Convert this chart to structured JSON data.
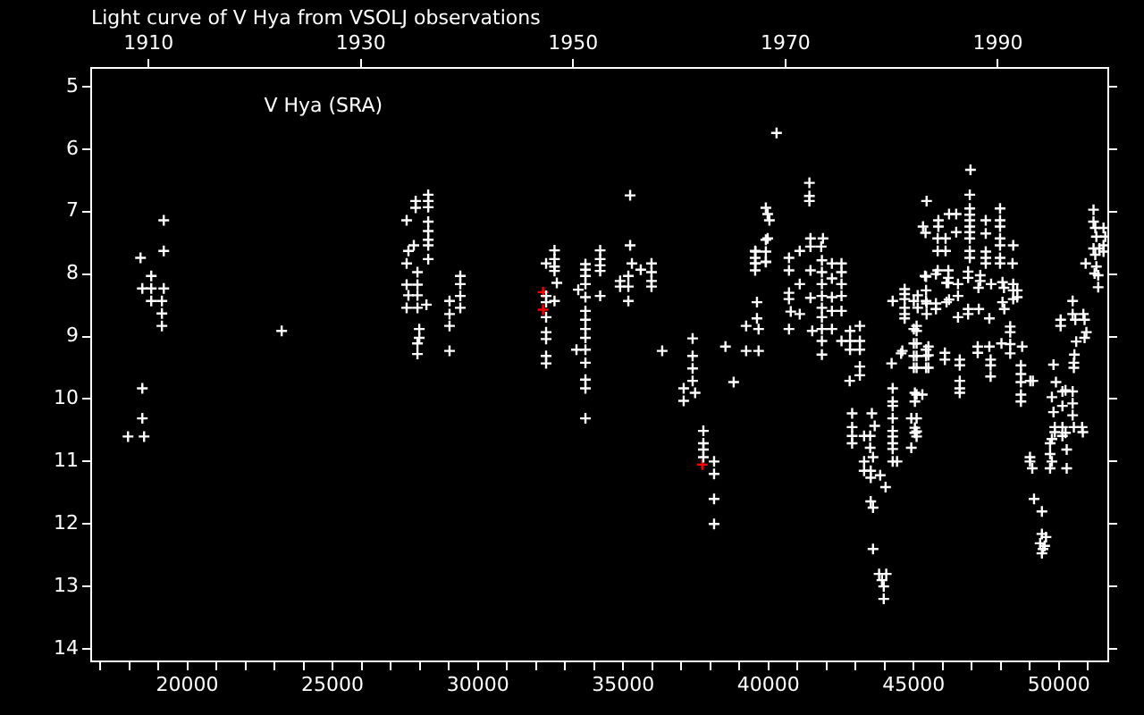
{
  "chart_data": {
    "type": "scatter",
    "title": "Light curve of V Hya from VSOLJ observations",
    "annotations": [
      "V Hya (SRA)"
    ],
    "marker": "cross",
    "xlim": [
      16690,
      51700
    ],
    "xticks": [
      {
        "value": 17000,
        "label": null
      },
      {
        "value": 18000,
        "label": null
      },
      {
        "value": 19000,
        "label": null
      },
      20000,
      {
        "value": 21000,
        "label": null
      },
      {
        "value": 22000,
        "label": null
      },
      {
        "value": 23000,
        "label": null
      },
      {
        "value": 24000,
        "label": null
      },
      25000,
      {
        "value": 26000,
        "label": null
      },
      {
        "value": 27000,
        "label": null
      },
      {
        "value": 28000,
        "label": null
      },
      {
        "value": 29000,
        "label": null
      },
      30000,
      {
        "value": 31000,
        "label": null
      },
      {
        "value": 32000,
        "label": null
      },
      {
        "value": 33000,
        "label": null
      },
      {
        "value": 34000,
        "label": null
      },
      35000,
      {
        "value": 36000,
        "label": null
      },
      {
        "value": 37000,
        "label": null
      },
      {
        "value": 38000,
        "label": null
      },
      {
        "value": 39000,
        "label": null
      },
      40000,
      {
        "value": 41000,
        "label": null
      },
      {
        "value": 42000,
        "label": null
      },
      {
        "value": 43000,
        "label": null
      },
      {
        "value": 44000,
        "label": null
      },
      45000,
      {
        "value": 46000,
        "label": null
      },
      {
        "value": 47000,
        "label": null
      },
      {
        "value": 48000,
        "label": null
      },
      {
        "value": 49000,
        "label": null
      },
      50000,
      {
        "value": 51000,
        "label": null
      }
    ],
    "x2lim": [
      1904.6,
      2000.4
    ],
    "x2ticks": [
      1910,
      1930,
      1950,
      1970,
      1990
    ],
    "ylim": [
      14.2,
      4.7
    ],
    "yticks": [
      5,
      6,
      7,
      8,
      9,
      10,
      11,
      12,
      13,
      14
    ],
    "series": [
      {
        "color": "#ffffff",
        "x": [
          17959,
          18512,
          18451,
          18451,
          18389,
          19189,
          19189,
          18758,
          18451,
          18758,
          19189,
          18758,
          19125,
          19125,
          19125,
          23248,
          27860,
          27860,
          27549,
          27797,
          27610,
          27549,
          27922,
          27549,
          27922,
          27610,
          27922,
          27549,
          27922,
          28230,
          27984,
          27984,
          27922,
          27922,
          28292,
          28292,
          28292,
          28292,
          28292,
          28292,
          28292,
          28292,
          29026,
          29026,
          29026,
          29026,
          29396,
          29396,
          29396,
          29396,
          32639,
          32639,
          32639,
          32639,
          32719,
          32639,
          32350,
          32350,
          32350,
          32350,
          32350,
          32350,
          32350,
          32350,
          34211,
          34211,
          34211,
          34211,
          34211,
          33704,
          33704,
          33704,
          33704,
          33704,
          33704,
          33704,
          33704,
          33704,
          33704,
          33704,
          33704,
          33704,
          33704,
          33457,
          33395,
          35242,
          35242,
          35304,
          35181,
          35181,
          35181,
          34898,
          34898,
          35608,
          35978,
          35978,
          35978,
          35978,
          36346,
          37393,
          37393,
          37393,
          37393,
          37085,
          37085,
          37479,
          38524,
          38806,
          39235,
          39664,
          39608,
          39608,
          39235,
          39664,
          39558,
          39558,
          39914,
          39914,
          39914,
          39914,
          37763,
          37763,
          37763,
          37763,
          38132,
          38132,
          38132,
          38132,
          40282,
          41413,
          41413,
          41413,
          39976,
          40036,
          39976,
          39546,
          39546,
          39546,
          39546,
          39914,
          40710,
          40710,
          41081,
          41450,
          41450,
          41880,
          41819,
          41843,
          41843,
          41843,
          41843,
          41843,
          41843,
          41843,
          41843,
          41843,
          41450,
          41450,
          41511,
          41081,
          41081,
          40710,
          40710,
          40710,
          40771,
          42188,
          42188,
          42188,
          42188,
          42188,
          42518,
          42518,
          42518,
          42518,
          42518,
          42518,
          43150,
          43150,
          43150,
          43150,
          43150,
          42812,
          42812,
          42812,
          42800,
          42884,
          42884,
          42884,
          42884,
          43563,
          43661,
          43296,
          43505,
          43505,
          43603,
          43296,
          43296,
          43524,
          43524,
          43850,
          44035,
          43524,
          43603,
          43603,
          43812,
          44058,
          43911,
          43972,
          43972,
          44280,
          44280,
          44280,
          44280,
          44280,
          44280,
          44280,
          44280,
          44280,
          44243,
          44611,
          44280,
          44692,
          44692,
          44692,
          44692,
          44692,
          44692,
          45103,
          45103,
          45103,
          45103,
          45103,
          45103,
          45103,
          45103,
          45103,
          45300,
          45447,
          45324,
          45411,
          45429,
          45429,
          45429,
          45429,
          45429,
          45429,
          45140,
          46958,
          46934,
          46934,
          46934,
          46934,
          46934,
          46934,
          46934,
          46934,
          46934,
          45853,
          45853,
          46220,
          46466,
          46466,
          45829,
          45829,
          46100,
          46100,
          47484,
          47484,
          47484,
          47484,
          47484,
          47976,
          47976,
          47976,
          47976,
          47976,
          47976,
          47976,
          48429,
          48404,
          45393,
          45768,
          45829,
          46196,
          46196,
          46196,
          46134,
          46528,
          46876,
          46876,
          47294,
          47294,
          47232,
          47668,
          48060,
          48110,
          48429,
          48429,
          48567,
          48567,
          48429,
          45007,
          45140,
          45447,
          45447,
          45768,
          45768,
          46134,
          46220,
          46528,
          46528,
          46876,
          46876,
          47244,
          47607,
          48060,
          48122,
          48325,
          48325,
          48024,
          48325,
          48325,
          45007,
          45007,
          45007,
          45007,
          44570,
          45509,
          45509,
          45509,
          46076,
          46076,
          46589,
          46589,
          47207,
          47207,
          47607,
          47651,
          47651,
          47651,
          48737,
          48694,
          48694,
          48694,
          48694,
          48694,
          49105,
          46589,
          46589,
          46589,
          45044,
          45044,
          45044,
          45044,
          44920,
          44430,
          44920,
          49006,
          49006,
          49085,
          49145,
          49416,
          49416,
          49355,
          49454,
          49416,
          49558,
          49510,
          49760,
          49815,
          49760,
          49698,
          49698,
          49698,
          49760,
          49859,
          49859,
          50123,
          50123,
          50228,
          50270,
          50270,
          50123,
          50123,
          50474,
          50474,
          50474,
          50516,
          50800,
          50825,
          50516,
          50516,
          50535,
          50597,
          50061,
          50061,
          50474,
          50474,
          50566,
          50843,
          50885,
          50885,
          50947,
          49815,
          49900,
          50228,
          49017,
          51193,
          51193,
          51254,
          51291,
          51193,
          51254,
          51291,
          51353,
          51353,
          51537,
          51598,
          51537,
          51537,
          50922,
          51230,
          51396
        ],
        "values": [
          10.6,
          10.6,
          10.31,
          9.83,
          7.74,
          7.14,
          7.63,
          8.03,
          8.23,
          8.23,
          8.23,
          8.43,
          8.43,
          8.63,
          8.83,
          8.91,
          6.83,
          6.94,
          7.14,
          7.54,
          7.63,
          7.83,
          7.97,
          8.17,
          8.17,
          8.34,
          8.34,
          8.54,
          8.54,
          8.49,
          8.88,
          9.02,
          9.11,
          9.28,
          6.73,
          6.83,
          6.93,
          7.16,
          7.31,
          7.45,
          7.54,
          7.76,
          8.43,
          8.64,
          8.83,
          9.23,
          8.03,
          8.16,
          8.35,
          8.54,
          7.62,
          7.76,
          7.88,
          7.95,
          8.14,
          8.43,
          7.83,
          8.35,
          8.45,
          8.69,
          8.93,
          9.04,
          9.31,
          9.43,
          7.62,
          7.76,
          7.86,
          7.95,
          8.35,
          7.84,
          7.93,
          8.03,
          8.16,
          8.37,
          8.59,
          8.73,
          8.88,
          9.02,
          9.21,
          9.42,
          9.69,
          9.83,
          10.31,
          8.25,
          9.21,
          6.74,
          7.54,
          7.83,
          8.03,
          8.2,
          8.43,
          8.11,
          8.2,
          7.93,
          7.83,
          7.97,
          8.11,
          8.2,
          9.23,
          9.03,
          9.31,
          9.51,
          9.71,
          9.83,
          10.03,
          9.9,
          9.16,
          9.73,
          9.23,
          9.23,
          8.45,
          8.71,
          8.83,
          8.88,
          7.64,
          7.83,
          7.64,
          7.8,
          7.45,
          6.94,
          10.51,
          10.71,
          10.81,
          10.93,
          11.0,
          11.2,
          11.6,
          12.0,
          5.74,
          6.54,
          6.75,
          6.83,
          7.04,
          7.14,
          7.43,
          7.63,
          7.74,
          7.83,
          7.94,
          7.81,
          7.74,
          7.94,
          7.63,
          7.43,
          7.56,
          7.43,
          7.56,
          7.78,
          7.97,
          8.16,
          8.35,
          8.54,
          8.69,
          8.88,
          9.07,
          9.29,
          7.94,
          8.38,
          8.91,
          8.16,
          8.64,
          8.3,
          8.4,
          8.88,
          8.6,
          7.83,
          8.07,
          8.37,
          8.59,
          8.88,
          7.83,
          7.97,
          8.16,
          8.35,
          8.59,
          9.07,
          8.83,
          9.07,
          9.21,
          9.48,
          9.62,
          8.91,
          9.07,
          9.21,
          9.71,
          10.23,
          10.45,
          10.59,
          10.71,
          10.23,
          10.43,
          10.59,
          10.59,
          10.78,
          10.93,
          11.0,
          11.15,
          11.15,
          11.26,
          11.22,
          11.41,
          11.64,
          11.74,
          12.4,
          12.8,
          12.8,
          12.9,
          13.0,
          13.2,
          9.83,
          10.04,
          10.11,
          10.31,
          10.51,
          10.6,
          10.71,
          10.8,
          11.0,
          9.43,
          9.23,
          8.43,
          8.24,
          8.32,
          8.4,
          8.54,
          8.64,
          8.71,
          8.83,
          8.91,
          9.11,
          9.31,
          9.5,
          9.93,
          10.31,
          10.52,
          10.6,
          9.93,
          6.83,
          7.24,
          7.34,
          8.04,
          8.26,
          8.43,
          9.21,
          9.31,
          9.5,
          8.34,
          6.33,
          6.73,
          6.95,
          7.05,
          7.14,
          7.24,
          7.33,
          7.43,
          7.63,
          7.74,
          7.14,
          7.24,
          7.04,
          7.04,
          7.33,
          7.43,
          7.63,
          7.43,
          7.63,
          7.14,
          7.35,
          7.64,
          7.74,
          7.83,
          6.95,
          7.14,
          7.24,
          7.43,
          7.54,
          7.74,
          7.83,
          7.54,
          7.83,
          8.03,
          8.0,
          7.94,
          7.94,
          8.06,
          8.14,
          8.14,
          8.16,
          7.96,
          8.06,
          8.02,
          8.11,
          8.22,
          8.16,
          8.13,
          8.22,
          8.16,
          8.26,
          8.26,
          8.37,
          8.4,
          8.43,
          8.54,
          8.47,
          8.64,
          8.47,
          8.56,
          8.45,
          8.41,
          8.35,
          8.69,
          8.56,
          8.64,
          8.56,
          8.71,
          8.45,
          8.56,
          8.84,
          8.93,
          9.11,
          9.12,
          9.27,
          8.88,
          9.11,
          9.31,
          9.5,
          9.27,
          9.16,
          9.3,
          9.5,
          9.26,
          9.37,
          9.37,
          9.46,
          9.16,
          9.26,
          9.16,
          9.37,
          9.46,
          9.64,
          9.16,
          9.46,
          9.6,
          9.73,
          9.93,
          10.04,
          9.71,
          9.71,
          9.83,
          9.9,
          9.9,
          10.04,
          10.46,
          10.54,
          10.31,
          11.0,
          10.78,
          10.93,
          11.0,
          11.11,
          11.6,
          11.8,
          12.16,
          12.31,
          12.4,
          12.47,
          12.21,
          12.35,
          9.97,
          10.21,
          10.64,
          10.71,
          10.88,
          11.11,
          11.0,
          10.45,
          10.53,
          10.45,
          10.59,
          10.54,
          10.81,
          11.11,
          10.11,
          9.88,
          9.88,
          10.07,
          10.26,
          10.45,
          10.45,
          10.53,
          9.42,
          9.5,
          9.29,
          9.08,
          8.73,
          8.83,
          8.64,
          8.43,
          8.73,
          8.64,
          8.73,
          9.02,
          8.93,
          9.45,
          9.73,
          9.86,
          9.71,
          6.97,
          7.16,
          7.26,
          7.4,
          7.59,
          7.69,
          7.88,
          8.02,
          8.21,
          7.26,
          7.4,
          7.54,
          7.64,
          7.83,
          7.99,
          7.59
        ]
      },
      {
        "color": "#ff0000",
        "x": [
          32245,
          32245,
          37725
        ],
        "values": [
          8.29,
          8.57,
          11.05
        ]
      }
    ]
  }
}
